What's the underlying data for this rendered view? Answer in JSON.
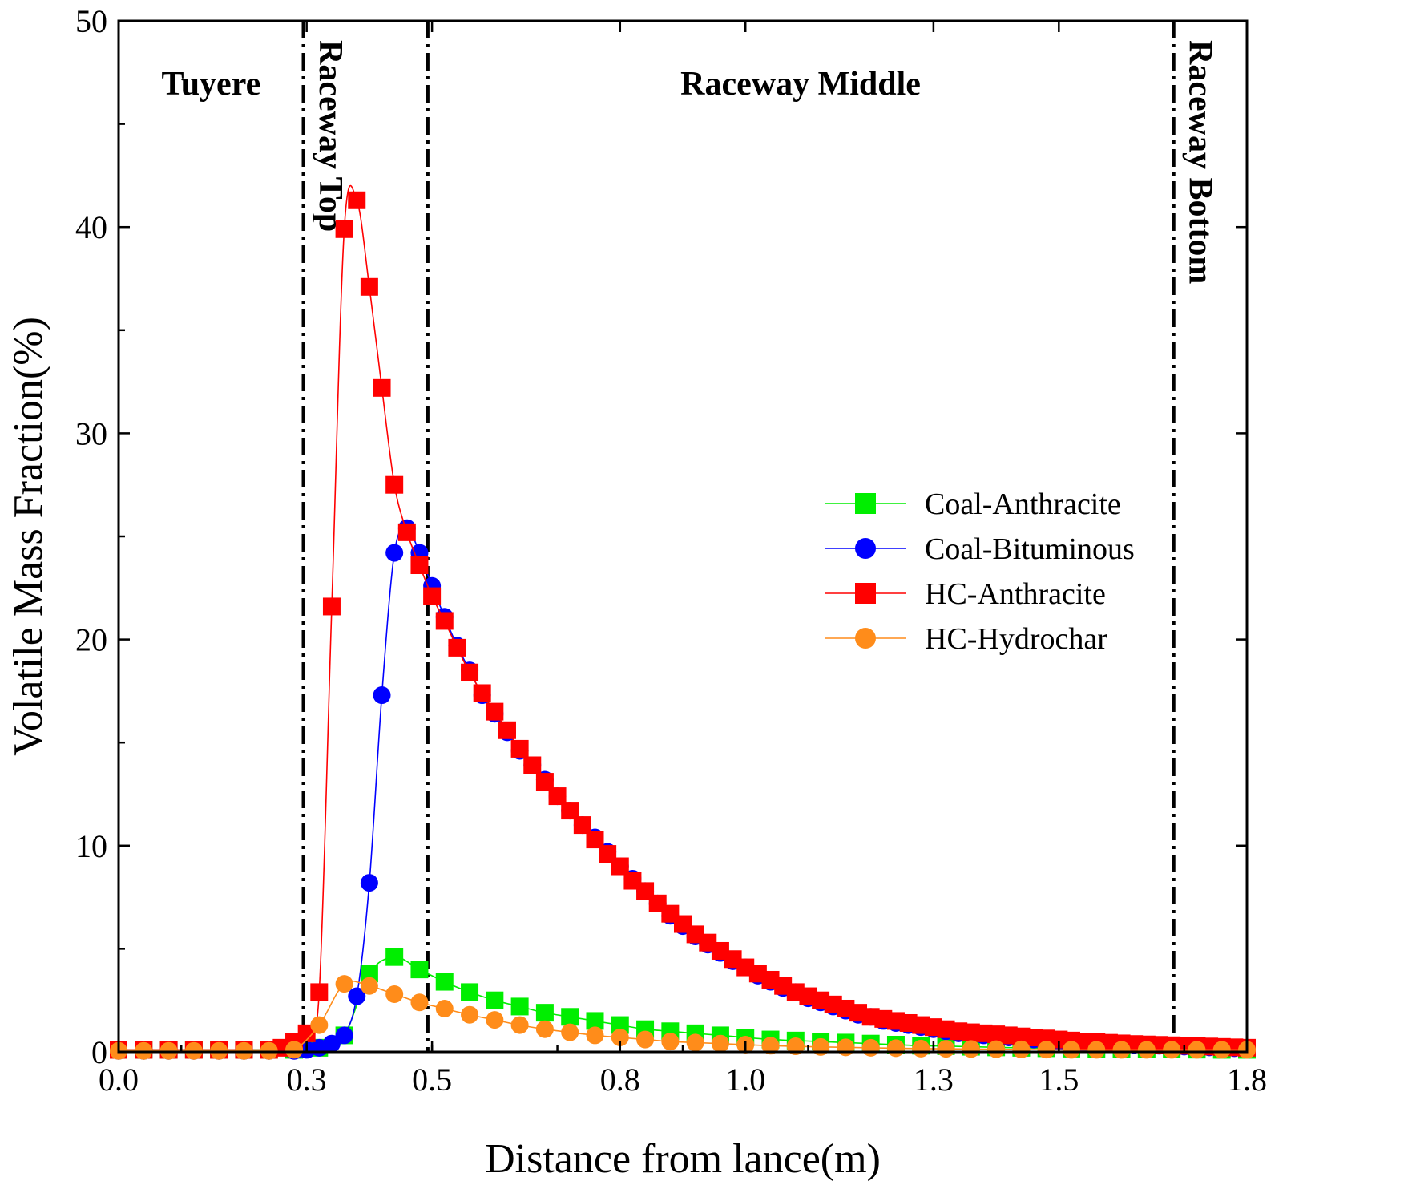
{
  "chart_data": {
    "type": "line",
    "title": "",
    "xlabel": "Distance from lance(m)",
    "ylabel": "Volatile Mass Fraction(%)",
    "xlim": [
      0,
      1.8
    ],
    "ylim": [
      0,
      50
    ],
    "x_ticks": [
      0.0,
      0.3,
      0.5,
      0.8,
      1.0,
      1.3,
      1.5,
      1.8
    ],
    "x_tick_labels": [
      "0.0",
      "0.3",
      "0.5",
      "0.8",
      "1.0",
      "1.3",
      "1.5",
      "1.8"
    ],
    "y_ticks": [
      0,
      10,
      20,
      30,
      40,
      50
    ],
    "y_tick_labels": [
      "0",
      "10",
      "20",
      "30",
      "40",
      "50"
    ],
    "zones": [
      {
        "label": "Tuyere",
        "x_from": 0.0,
        "x_to": 0.295,
        "orientation": "horizontal"
      },
      {
        "label": "Raceway Top",
        "x_from": 0.295,
        "x_to": 0.493,
        "orientation": "vertical"
      },
      {
        "label": "Raceway Middle",
        "x_from": 0.493,
        "x_to": 1.683,
        "orientation": "horizontal"
      },
      {
        "label": "Raceway Bottom",
        "x_from": 1.683,
        "x_to": 1.8,
        "orientation": "vertical"
      }
    ],
    "zone_boundaries": [
      0.295,
      0.493,
      1.683
    ],
    "legend_position": "right-center",
    "series": [
      {
        "name": "Coal-Anthracite",
        "color": "#00ee00",
        "marker": "square",
        "x": [
          0.0,
          0.04,
          0.08,
          0.12,
          0.16,
          0.2,
          0.24,
          0.28,
          0.32,
          0.36,
          0.4,
          0.44,
          0.48,
          0.52,
          0.56,
          0.6,
          0.64,
          0.68,
          0.72,
          0.76,
          0.8,
          0.84,
          0.88,
          0.92,
          0.96,
          1.0,
          1.04,
          1.08,
          1.12,
          1.16,
          1.2,
          1.24,
          1.28,
          1.32,
          1.36,
          1.4,
          1.44,
          1.48,
          1.52,
          1.56,
          1.6,
          1.64,
          1.68,
          1.72,
          1.76,
          1.8
        ],
        "y": [
          0.1,
          0.1,
          0.1,
          0.1,
          0.1,
          0.1,
          0.1,
          0.1,
          0.2,
          0.8,
          3.8,
          4.6,
          4.0,
          3.4,
          2.9,
          2.5,
          2.2,
          1.9,
          1.7,
          1.5,
          1.3,
          1.1,
          1.0,
          0.9,
          0.8,
          0.7,
          0.6,
          0.55,
          0.5,
          0.45,
          0.4,
          0.35,
          0.3,
          0.28,
          0.25,
          0.22,
          0.2,
          0.18,
          0.16,
          0.15,
          0.14,
          0.13,
          0.12,
          0.11,
          0.1,
          0.1
        ]
      },
      {
        "name": "Coal-Bituminous",
        "color": "#0000ff",
        "marker": "circle",
        "x": [
          0.0,
          0.04,
          0.08,
          0.12,
          0.16,
          0.2,
          0.24,
          0.28,
          0.3,
          0.32,
          0.34,
          0.36,
          0.38,
          0.4,
          0.42,
          0.44,
          0.46,
          0.48,
          0.5,
          0.52,
          0.54,
          0.56,
          0.58,
          0.6,
          0.62,
          0.64,
          0.66,
          0.68,
          0.7,
          0.72,
          0.74,
          0.76,
          0.78,
          0.8,
          0.82,
          0.84,
          0.86,
          0.88,
          0.9,
          0.92,
          0.94,
          0.96,
          0.98,
          1.0,
          1.02,
          1.04,
          1.06,
          1.08,
          1.1,
          1.12,
          1.14,
          1.16,
          1.18,
          1.2,
          1.22,
          1.24,
          1.26,
          1.28,
          1.3,
          1.32,
          1.34,
          1.36,
          1.38,
          1.4,
          1.42,
          1.44,
          1.46,
          1.48,
          1.5,
          1.52,
          1.54,
          1.56,
          1.58,
          1.6,
          1.62,
          1.64,
          1.66,
          1.68,
          1.7,
          1.72,
          1.74,
          1.76,
          1.78,
          1.8
        ],
        "y": [
          0.05,
          0.05,
          0.05,
          0.05,
          0.05,
          0.05,
          0.05,
          0.05,
          0.1,
          0.2,
          0.4,
          0.8,
          2.7,
          8.2,
          17.3,
          24.2,
          25.4,
          24.2,
          22.6,
          21.1,
          19.7,
          18.5,
          17.3,
          16.4,
          15.5,
          14.6,
          13.9,
          13.2,
          12.4,
          11.7,
          11.0,
          10.4,
          9.7,
          9.0,
          8.4,
          7.8,
          7.2,
          6.6,
          6.1,
          5.6,
          5.2,
          4.8,
          4.4,
          4.1,
          3.7,
          3.4,
          3.1,
          2.9,
          2.6,
          2.4,
          2.2,
          2.0,
          1.8,
          1.7,
          1.5,
          1.4,
          1.3,
          1.2,
          1.1,
          1.0,
          0.9,
          0.85,
          0.8,
          0.75,
          0.7,
          0.65,
          0.6,
          0.55,
          0.5,
          0.47,
          0.44,
          0.41,
          0.38,
          0.36,
          0.34,
          0.32,
          0.3,
          0.28,
          0.26,
          0.24,
          0.22,
          0.2,
          0.18,
          0.17
        ]
      },
      {
        "name": "HC-Anthracite",
        "color": "#ff0000",
        "marker": "square",
        "x": [
          0.0,
          0.04,
          0.08,
          0.12,
          0.16,
          0.2,
          0.24,
          0.26,
          0.28,
          0.3,
          0.32,
          0.34,
          0.36,
          0.38,
          0.4,
          0.42,
          0.44,
          0.46,
          0.48,
          0.5,
          0.52,
          0.54,
          0.56,
          0.58,
          0.6,
          0.62,
          0.64,
          0.66,
          0.68,
          0.7,
          0.72,
          0.74,
          0.76,
          0.78,
          0.8,
          0.82,
          0.84,
          0.86,
          0.88,
          0.9,
          0.92,
          0.94,
          0.96,
          0.98,
          1.0,
          1.02,
          1.04,
          1.06,
          1.08,
          1.1,
          1.12,
          1.14,
          1.16,
          1.18,
          1.2,
          1.22,
          1.24,
          1.26,
          1.28,
          1.3,
          1.32,
          1.34,
          1.36,
          1.38,
          1.4,
          1.42,
          1.44,
          1.46,
          1.48,
          1.5,
          1.52,
          1.54,
          1.56,
          1.58,
          1.6,
          1.62,
          1.64,
          1.66,
          1.68,
          1.7,
          1.72,
          1.74,
          1.76,
          1.78,
          1.8
        ],
        "y": [
          0.1,
          0.1,
          0.1,
          0.1,
          0.1,
          0.1,
          0.1,
          0.2,
          0.5,
          0.9,
          2.9,
          21.6,
          39.9,
          41.3,
          37.1,
          32.2,
          27.5,
          25.2,
          23.6,
          22.1,
          20.9,
          19.6,
          18.4,
          17.4,
          16.5,
          15.6,
          14.7,
          13.9,
          13.1,
          12.4,
          11.7,
          11.0,
          10.3,
          9.6,
          9.0,
          8.3,
          7.8,
          7.2,
          6.7,
          6.2,
          5.7,
          5.3,
          4.9,
          4.5,
          4.1,
          3.8,
          3.5,
          3.2,
          2.9,
          2.7,
          2.5,
          2.3,
          2.1,
          1.9,
          1.7,
          1.6,
          1.5,
          1.4,
          1.3,
          1.2,
          1.1,
          1.0,
          0.95,
          0.9,
          0.85,
          0.8,
          0.75,
          0.7,
          0.65,
          0.6,
          0.55,
          0.5,
          0.47,
          0.44,
          0.41,
          0.38,
          0.36,
          0.34,
          0.32,
          0.3,
          0.28,
          0.26,
          0.24,
          0.22,
          0.2
        ]
      },
      {
        "name": "HC-Hydrochar",
        "color": "#ff8c1a",
        "marker": "circle",
        "x": [
          0.0,
          0.04,
          0.08,
          0.12,
          0.16,
          0.2,
          0.24,
          0.28,
          0.32,
          0.36,
          0.4,
          0.44,
          0.48,
          0.52,
          0.56,
          0.6,
          0.64,
          0.68,
          0.72,
          0.76,
          0.8,
          0.84,
          0.88,
          0.92,
          0.96,
          1.0,
          1.04,
          1.08,
          1.12,
          1.16,
          1.2,
          1.24,
          1.28,
          1.32,
          1.36,
          1.4,
          1.44,
          1.48,
          1.52,
          1.56,
          1.6,
          1.64,
          1.68,
          1.72,
          1.76,
          1.8
        ],
        "y": [
          0.05,
          0.05,
          0.05,
          0.05,
          0.05,
          0.05,
          0.05,
          0.1,
          1.3,
          3.3,
          3.2,
          2.8,
          2.4,
          2.1,
          1.8,
          1.55,
          1.3,
          1.1,
          0.95,
          0.8,
          0.7,
          0.6,
          0.5,
          0.45,
          0.4,
          0.35,
          0.3,
          0.27,
          0.24,
          0.22,
          0.2,
          0.18,
          0.16,
          0.15,
          0.14,
          0.13,
          0.12,
          0.11,
          0.1,
          0.1,
          0.1,
          0.1,
          0.1,
          0.1,
          0.1,
          0.1
        ]
      }
    ]
  }
}
